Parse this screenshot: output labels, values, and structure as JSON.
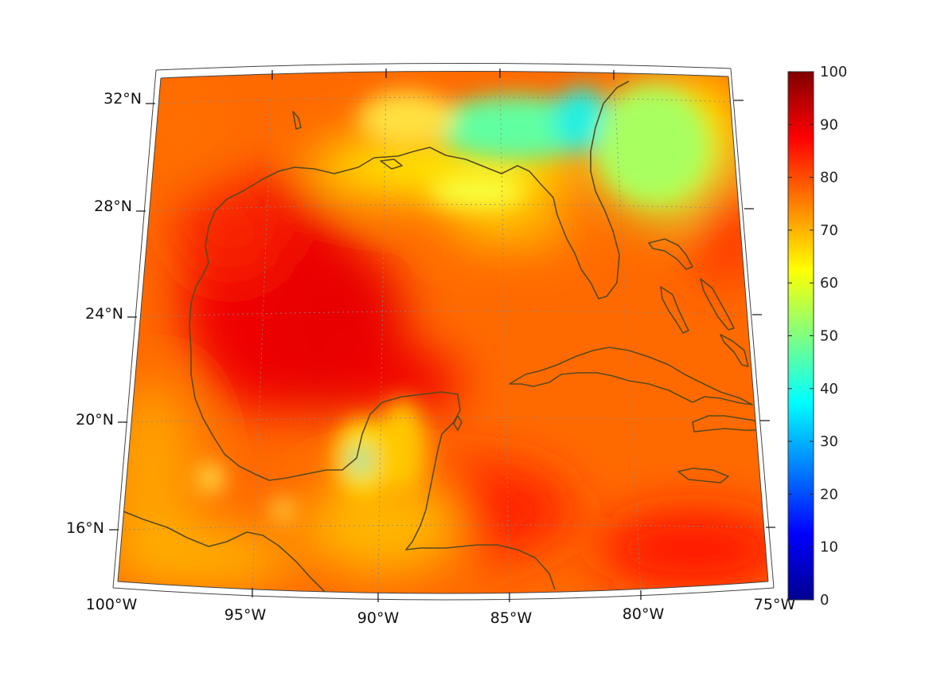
{
  "map": {
    "lat_labels": [
      "32°N",
      "28°N",
      "24°N",
      "20°N",
      "16°N"
    ],
    "lon_labels": [
      "100°W",
      "95°W",
      "90°W",
      "85°W",
      "80°W",
      "75°W"
    ],
    "coast_color": "#5a4a1e",
    "colormap": "jet"
  },
  "colorbar": {
    "ticks": [
      "100",
      "90",
      "80",
      "70",
      "60",
      "50",
      "40",
      "30",
      "20",
      "10",
      "0"
    ],
    "range": [
      0,
      100
    ]
  }
}
